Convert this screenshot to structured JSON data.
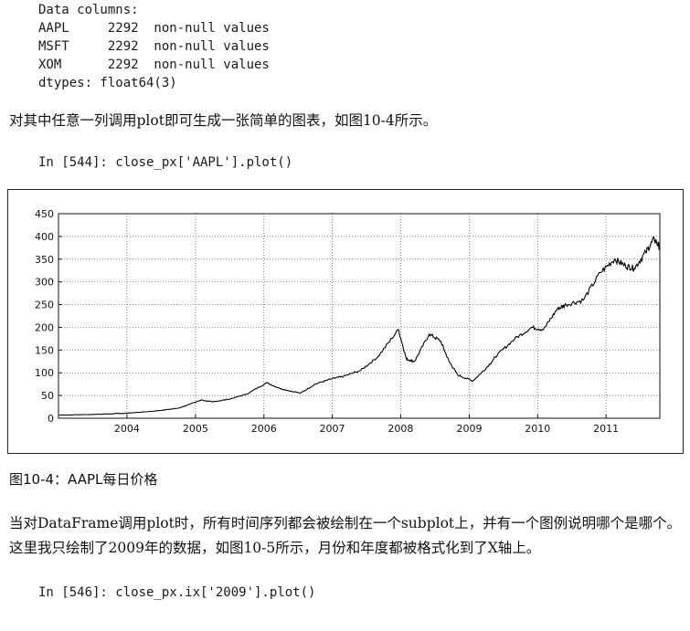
{
  "code_output": {
    "lines": [
      "Data columns:",
      "AAPL     2292  non-null values",
      "MSFT     2292  non-null values",
      "XOM      2292  non-null values",
      "dtypes: float64(3)"
    ]
  },
  "para1": "对其中任意一列调用plot即可生成一张简单的图表，如图10-4所示。",
  "input1": "In [544]: close_px['AAPL'].plot()",
  "figure": {
    "caption": "图10-4：AAPL每日价格"
  },
  "para2": "当对DataFrame调用plot时，所有时间序列都会被绘制在一个subplot上，并有一个图例说明哪个是哪个。这里我只绘制了2009年的数据，如图10-5所示，月份和年度都被格式化到了X轴上。",
  "input2": "In [546]: close_px.ix['2009'].plot()",
  "chart_data": {
    "type": "line",
    "title": "",
    "xlabel": "",
    "ylabel": "",
    "xlim": [
      "2003-01-01",
      "2011-10-15"
    ],
    "ylim": [
      0,
      450
    ],
    "grid": true,
    "line_color": "#000000",
    "x_ticks": [
      "2004",
      "2005",
      "2006",
      "2007",
      "2008",
      "2009",
      "2010",
      "2011"
    ],
    "y_ticks": [
      "0",
      "50",
      "100",
      "150",
      "200",
      "250",
      "300",
      "350",
      "400",
      "450"
    ],
    "series": [
      {
        "name": "",
        "x": [
          "2003-01-01",
          "2003-06-01",
          "2004-01-01",
          "2004-06-01",
          "2004-10-01",
          "2005-02-01",
          "2005-04-01",
          "2005-07-01",
          "2005-10-01",
          "2006-01-15",
          "2006-04-01",
          "2006-07-15",
          "2006-10-01",
          "2007-01-01",
          "2007-03-01",
          "2007-06-01",
          "2007-09-01",
          "2007-12-20",
          "2008-02-01",
          "2008-03-15",
          "2008-06-01",
          "2008-08-01",
          "2008-09-15",
          "2008-11-01",
          "2009-01-20",
          "2009-04-01",
          "2009-06-01",
          "2009-09-01",
          "2009-12-01",
          "2010-02-01",
          "2010-04-15",
          "2010-06-01",
          "2010-09-01",
          "2010-12-01",
          "2011-02-15",
          "2011-04-15",
          "2011-06-01",
          "2011-08-01",
          "2011-09-15",
          "2011-10-15"
        ],
        "y": [
          7,
          8,
          11,
          16,
          22,
          40,
          36,
          42,
          53,
          78,
          65,
          55,
          75,
          87,
          92,
          105,
          135,
          195,
          130,
          125,
          185,
          170,
          125,
          95,
          82,
          110,
          140,
          175,
          200,
          195,
          240,
          250,
          260,
          320,
          350,
          335,
          330,
          365,
          395,
          375
        ]
      }
    ]
  }
}
